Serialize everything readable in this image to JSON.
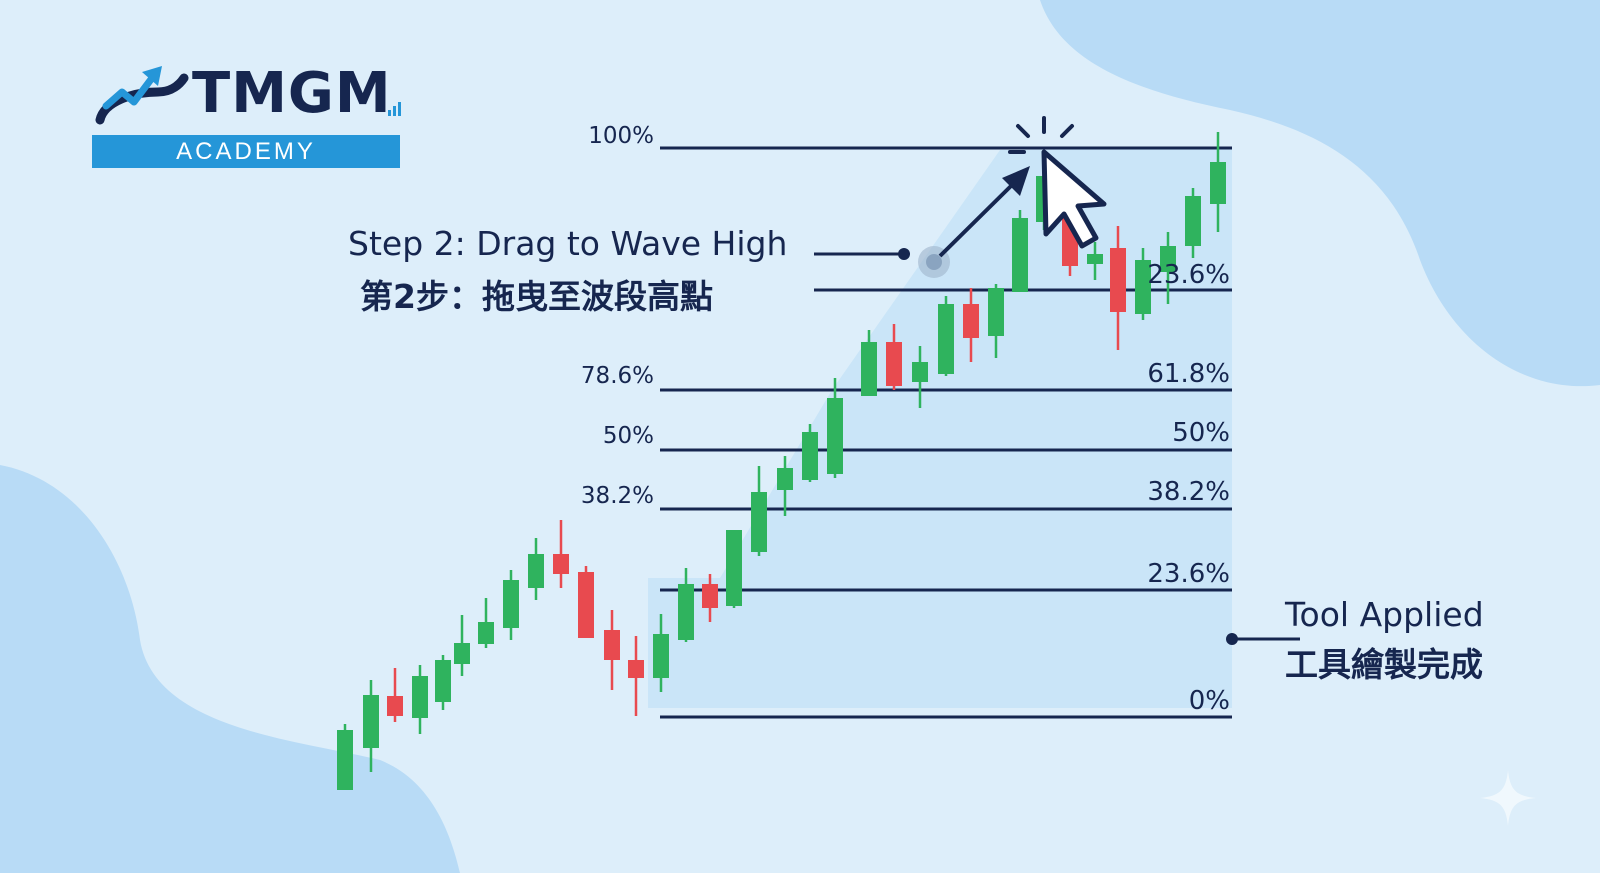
{
  "logo": {
    "brand": "TMGM",
    "academy": "ACADEMY"
  },
  "callouts": {
    "step_en": "Step 2: Drag to Wave High",
    "step_zh": "第2步：拖曳至波段高點",
    "tool_en": "Tool Applied",
    "tool_zh": "工具繪製完成"
  },
  "fib_levels_left": [
    "100%",
    "78.6%",
    "50%",
    "38.2%"
  ],
  "fib_levels_right": [
    "23.6%",
    "61.8%",
    "50%",
    "38.2%",
    "23.6%",
    "0%"
  ],
  "colors": {
    "bull": "#2fb35e",
    "bear": "#e84a4f",
    "line": "#16264f",
    "fill": "#c3e1f7",
    "accent": "#2596d8"
  },
  "icons": {
    "cursor": "arrow-cursor-icon",
    "logo": "chart-arrow-logo-icon",
    "sparkle": "sparkle-icon"
  }
}
